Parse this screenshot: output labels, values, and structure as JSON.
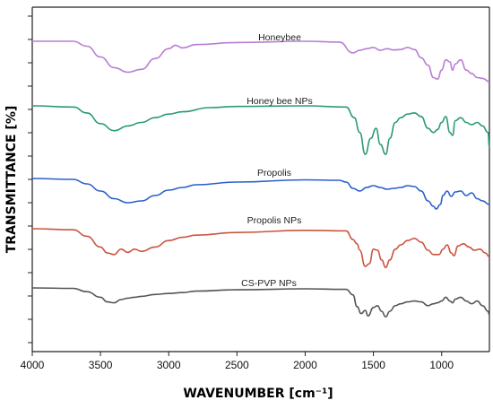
{
  "chart_data": {
    "type": "line",
    "xlabel": "WAVENUMBER [cm⁻¹]",
    "ylabel": "TRANSMITTANCE [%]",
    "xlim": [
      4000,
      650
    ],
    "x_ticks": [
      4000,
      3500,
      3000,
      2500,
      2000,
      1500,
      1000
    ],
    "y_ticks_labeled": false,
    "grid": false,
    "series": [
      {
        "name": "Honeybee",
        "color": "#b77fd3",
        "points": [
          [
            4000,
            1.0
          ],
          [
            3700,
            1.0
          ],
          [
            3600,
            0.88
          ],
          [
            3500,
            0.62
          ],
          [
            3400,
            0.36
          ],
          [
            3300,
            0.25
          ],
          [
            3200,
            0.32
          ],
          [
            3100,
            0.58
          ],
          [
            3000,
            0.82
          ],
          [
            2950,
            0.9
          ],
          [
            2900,
            0.84
          ],
          [
            2800,
            0.92
          ],
          [
            2500,
            0.97
          ],
          [
            2000,
            1.0
          ],
          [
            1750,
            0.98
          ],
          [
            1650,
            0.72
          ],
          [
            1600,
            0.78
          ],
          [
            1550,
            0.82
          ],
          [
            1500,
            0.85
          ],
          [
            1450,
            0.78
          ],
          [
            1400,
            0.82
          ],
          [
            1350,
            0.79
          ],
          [
            1300,
            0.8
          ],
          [
            1250,
            0.85
          ],
          [
            1200,
            0.8
          ],
          [
            1150,
            0.6
          ],
          [
            1100,
            0.42
          ],
          [
            1060,
            0.12
          ],
          [
            1030,
            0.08
          ],
          [
            1000,
            0.3
          ],
          [
            970,
            0.55
          ],
          [
            940,
            0.5
          ],
          [
            920,
            0.3
          ],
          [
            900,
            0.45
          ],
          [
            860,
            0.55
          ],
          [
            820,
            0.3
          ],
          [
            780,
            0.22
          ],
          [
            740,
            0.12
          ],
          [
            700,
            0.1
          ],
          [
            650,
            0.02
          ]
        ]
      },
      {
        "name": "Honey bee NPs",
        "color": "#2a9a76",
        "points": [
          [
            4000,
            1.0
          ],
          [
            3700,
            0.98
          ],
          [
            3600,
            0.88
          ],
          [
            3500,
            0.7
          ],
          [
            3400,
            0.58
          ],
          [
            3300,
            0.66
          ],
          [
            3200,
            0.72
          ],
          [
            3100,
            0.8
          ],
          [
            3000,
            0.86
          ],
          [
            2900,
            0.9
          ],
          [
            2700,
            0.97
          ],
          [
            2500,
            0.99
          ],
          [
            2000,
            1.0
          ],
          [
            1700,
            0.98
          ],
          [
            1640,
            0.8
          ],
          [
            1600,
            0.55
          ],
          [
            1560,
            0.18
          ],
          [
            1520,
            0.45
          ],
          [
            1480,
            0.62
          ],
          [
            1450,
            0.35
          ],
          [
            1410,
            0.18
          ],
          [
            1380,
            0.45
          ],
          [
            1340,
            0.72
          ],
          [
            1300,
            0.8
          ],
          [
            1250,
            0.86
          ],
          [
            1200,
            0.88
          ],
          [
            1150,
            0.82
          ],
          [
            1100,
            0.62
          ],
          [
            1060,
            0.55
          ],
          [
            1030,
            0.6
          ],
          [
            1000,
            0.72
          ],
          [
            970,
            0.82
          ],
          [
            940,
            0.55
          ],
          [
            920,
            0.5
          ],
          [
            900,
            0.75
          ],
          [
            860,
            0.8
          ],
          [
            820,
            0.72
          ],
          [
            780,
            0.68
          ],
          [
            740,
            0.72
          ],
          [
            700,
            0.66
          ],
          [
            660,
            0.55
          ],
          [
            650,
            0.3
          ]
        ]
      },
      {
        "name": "Propolis",
        "color": "#2a5fcc",
        "points": [
          [
            4000,
            1.0
          ],
          [
            3700,
            0.98
          ],
          [
            3600,
            0.88
          ],
          [
            3500,
            0.72
          ],
          [
            3400,
            0.55
          ],
          [
            3300,
            0.46
          ],
          [
            3200,
            0.5
          ],
          [
            3100,
            0.62
          ],
          [
            3000,
            0.74
          ],
          [
            2900,
            0.8
          ],
          [
            2800,
            0.86
          ],
          [
            2500,
            0.92
          ],
          [
            2000,
            0.97
          ],
          [
            1750,
            0.96
          ],
          [
            1700,
            0.92
          ],
          [
            1650,
            0.78
          ],
          [
            1600,
            0.72
          ],
          [
            1550,
            0.8
          ],
          [
            1500,
            0.84
          ],
          [
            1450,
            0.8
          ],
          [
            1400,
            0.76
          ],
          [
            1350,
            0.78
          ],
          [
            1300,
            0.8
          ],
          [
            1250,
            0.84
          ],
          [
            1200,
            0.82
          ],
          [
            1150,
            0.72
          ],
          [
            1100,
            0.5
          ],
          [
            1060,
            0.38
          ],
          [
            1040,
            0.32
          ],
          [
            1010,
            0.42
          ],
          [
            990,
            0.62
          ],
          [
            960,
            0.72
          ],
          [
            930,
            0.6
          ],
          [
            900,
            0.7
          ],
          [
            860,
            0.72
          ],
          [
            820,
            0.62
          ],
          [
            780,
            0.68
          ],
          [
            740,
            0.55
          ],
          [
            700,
            0.5
          ],
          [
            650,
            0.42
          ]
        ]
      },
      {
        "name": "Propolis NPs",
        "color": "#c9553f",
        "points": [
          [
            4000,
            1.0
          ],
          [
            3700,
            0.98
          ],
          [
            3600,
            0.86
          ],
          [
            3500,
            0.66
          ],
          [
            3450,
            0.55
          ],
          [
            3400,
            0.52
          ],
          [
            3350,
            0.62
          ],
          [
            3300,
            0.56
          ],
          [
            3250,
            0.62
          ],
          [
            3200,
            0.58
          ],
          [
            3100,
            0.66
          ],
          [
            3000,
            0.78
          ],
          [
            2900,
            0.84
          ],
          [
            2800,
            0.88
          ],
          [
            2500,
            0.93
          ],
          [
            2000,
            0.97
          ],
          [
            1700,
            0.96
          ],
          [
            1650,
            0.8
          ],
          [
            1620,
            0.72
          ],
          [
            1600,
            0.6
          ],
          [
            1560,
            0.3
          ],
          [
            1530,
            0.35
          ],
          [
            1500,
            0.62
          ],
          [
            1470,
            0.6
          ],
          [
            1440,
            0.42
          ],
          [
            1410,
            0.28
          ],
          [
            1380,
            0.42
          ],
          [
            1340,
            0.62
          ],
          [
            1300,
            0.7
          ],
          [
            1250,
            0.78
          ],
          [
            1200,
            0.82
          ],
          [
            1150,
            0.75
          ],
          [
            1100,
            0.6
          ],
          [
            1060,
            0.52
          ],
          [
            1020,
            0.52
          ],
          [
            990,
            0.62
          ],
          [
            960,
            0.7
          ],
          [
            930,
            0.55
          ],
          [
            910,
            0.5
          ],
          [
            880,
            0.68
          ],
          [
            840,
            0.72
          ],
          [
            800,
            0.66
          ],
          [
            760,
            0.6
          ],
          [
            720,
            0.62
          ],
          [
            680,
            0.55
          ],
          [
            650,
            0.48
          ]
        ]
      },
      {
        "name": "CS-PVP NPs",
        "color": "#555555",
        "points": [
          [
            4000,
            1.0
          ],
          [
            3700,
            0.99
          ],
          [
            3600,
            0.92
          ],
          [
            3500,
            0.8
          ],
          [
            3450,
            0.7
          ],
          [
            3400,
            0.68
          ],
          [
            3350,
            0.75
          ],
          [
            3300,
            0.78
          ],
          [
            3250,
            0.8
          ],
          [
            3200,
            0.82
          ],
          [
            3100,
            0.86
          ],
          [
            3000,
            0.88
          ],
          [
            2900,
            0.9
          ],
          [
            2800,
            0.93
          ],
          [
            2500,
            0.96
          ],
          [
            2000,
            0.98
          ],
          [
            1700,
            0.97
          ],
          [
            1650,
            0.85
          ],
          [
            1620,
            0.6
          ],
          [
            1590,
            0.45
          ],
          [
            1560,
            0.52
          ],
          [
            1540,
            0.4
          ],
          [
            1500,
            0.58
          ],
          [
            1470,
            0.62
          ],
          [
            1440,
            0.5
          ],
          [
            1410,
            0.38
          ],
          [
            1380,
            0.5
          ],
          [
            1340,
            0.62
          ],
          [
            1300,
            0.66
          ],
          [
            1250,
            0.7
          ],
          [
            1200,
            0.72
          ],
          [
            1150,
            0.7
          ],
          [
            1100,
            0.62
          ],
          [
            1060,
            0.66
          ],
          [
            1030,
            0.68
          ],
          [
            1000,
            0.72
          ],
          [
            970,
            0.8
          ],
          [
            940,
            0.72
          ],
          [
            920,
            0.68
          ],
          [
            900,
            0.76
          ],
          [
            860,
            0.8
          ],
          [
            820,
            0.72
          ],
          [
            780,
            0.66
          ],
          [
            740,
            0.72
          ],
          [
            700,
            0.62
          ],
          [
            660,
            0.5
          ],
          [
            650,
            0.42
          ]
        ]
      }
    ]
  }
}
